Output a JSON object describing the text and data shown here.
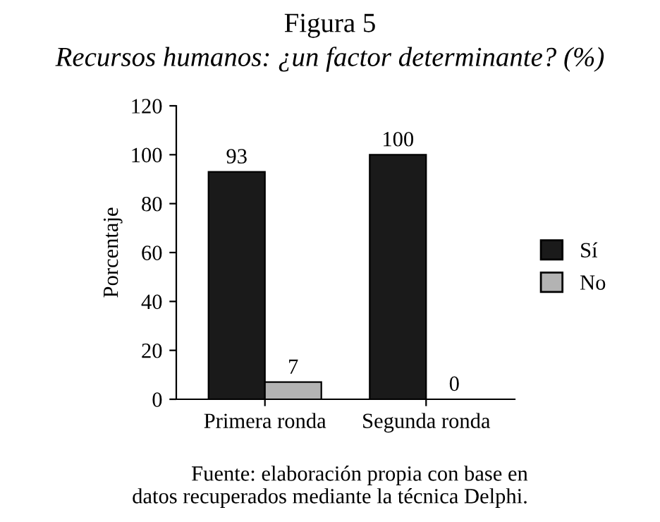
{
  "chart_data": {
    "type": "bar",
    "title": "Figura 5",
    "subtitle": "Recursos humanos: ¿un factor determinante? (%)",
    "ylabel": "Porcentaje",
    "categories": [
      "Primera ronda",
      "Segunda ronda"
    ],
    "series": [
      {
        "name": "Sí",
        "color": "#1a1a1a",
        "values": [
          93,
          100
        ]
      },
      {
        "name": "No",
        "color": "#b3b3b3",
        "values": [
          7,
          0
        ]
      }
    ],
    "ylim": [
      0,
      120
    ],
    "yticks": [
      0,
      20,
      40,
      60,
      80,
      100,
      120
    ],
    "grid": false,
    "legend": "right",
    "data_labels": true,
    "annotations": [
      "Fuente: elaboración propia con base en\ndatos recuperados mediante la técnica Delphi."
    ]
  }
}
